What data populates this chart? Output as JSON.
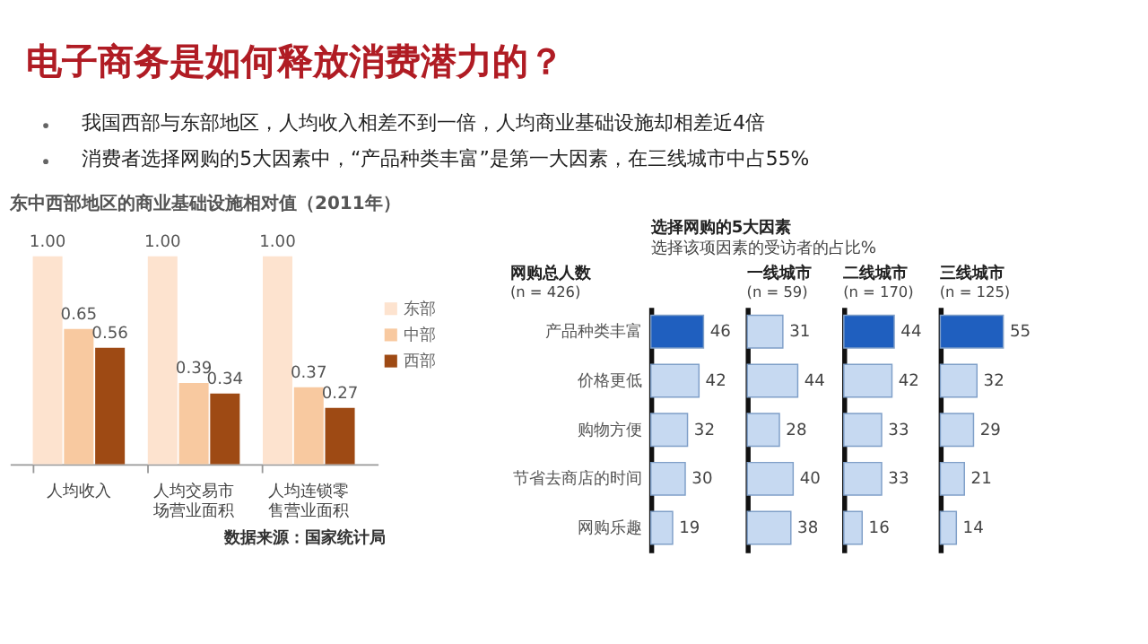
{
  "chart_data": [
    {
      "type": "bar",
      "title": "东中西部地区的商业基础设施相对值（2011年）",
      "categories": [
        "人均收入",
        "人均交易市场营业面积",
        "人均连锁零售营业面积"
      ],
      "series": [
        {
          "name": "东部",
          "color": "#fde3cf",
          "values": [
            1.0,
            1.0,
            1.0
          ],
          "value_labels": [
            "1.00",
            "1.00",
            "1.00"
          ]
        },
        {
          "name": "中部",
          "color": "#f8c9a0",
          "values": [
            0.65,
            0.39,
            0.37
          ],
          "value_labels": [
            "0.65",
            "0.39",
            "0.37"
          ]
        },
        {
          "name": "西部",
          "color": "#9e4a14",
          "values": [
            0.56,
            0.34,
            0.27
          ],
          "value_labels": [
            "0.56",
            "0.34",
            "0.27"
          ]
        }
      ],
      "legend": "right",
      "annotations": [
        "电子商务是如何释放消费潜力的？",
        "我国西部与东部地区，人均收入相差不到一倍，人均商业基础设施却相差近4倍",
        "消费者选择网购的5大因素中，“产品种类丰富”是第一大因素，在三线城市中占55%",
        "数据来源：国家统计局"
      ]
    },
    {
      "type": "bar",
      "orientation": "horizontal",
      "title": "网购总人数",
      "subtitle": "(n = 426)",
      "annotations": [
        "选择网购的5大因素",
        "选择该项因素的受访者的占比%"
      ],
      "categories": [
        "产品种类丰富",
        "价格更低",
        "购物方便",
        "节省去商店的时间",
        "网购乐趣"
      ],
      "values": [
        46,
        42,
        32,
        30,
        19
      ],
      "colors": [
        "#1f5fbf",
        "#c6d9f1",
        "#c6d9f1",
        "#c6d9f1",
        "#c6d9f1"
      ],
      "data_labels": true
    },
    {
      "type": "bar",
      "orientation": "horizontal",
      "title": "一线城市",
      "subtitle": "(n = 59)",
      "categories": [
        "产品种类丰富",
        "价格更低",
        "购物方便",
        "节省去商店的时间",
        "网购乐趣"
      ],
      "values": [
        31,
        44,
        28,
        40,
        38
      ],
      "colors": [
        "#c6d9f1",
        "#c6d9f1",
        "#c6d9f1",
        "#c6d9f1",
        "#c6d9f1"
      ],
      "data_labels": true,
      "tick_labels": false
    },
    {
      "type": "bar",
      "orientation": "horizontal",
      "title": "二线城市",
      "subtitle": "(n = 170)",
      "categories": [
        "产品种类丰富",
        "价格更低",
        "购物方便",
        "节省去商店的时间",
        "网购乐趣"
      ],
      "values": [
        44,
        42,
        33,
        33,
        16
      ],
      "colors": [
        "#1f5fbf",
        "#c6d9f1",
        "#c6d9f1",
        "#c6d9f1",
        "#c6d9f1"
      ],
      "data_labels": true,
      "tick_labels": false
    },
    {
      "type": "bar",
      "orientation": "horizontal",
      "title": "三线城市",
      "subtitle": "(n = 125)",
      "categories": [
        "产品种类丰富",
        "价格更低",
        "购物方便",
        "节省去商店的时间",
        "网购乐趣"
      ],
      "values": [
        55,
        32,
        29,
        21,
        14
      ],
      "colors": [
        "#1f5fbf",
        "#c6d9f1",
        "#c6d9f1",
        "#c6d9f1",
        "#c6d9f1"
      ],
      "data_labels": true,
      "tick_labels": false
    }
  ]
}
